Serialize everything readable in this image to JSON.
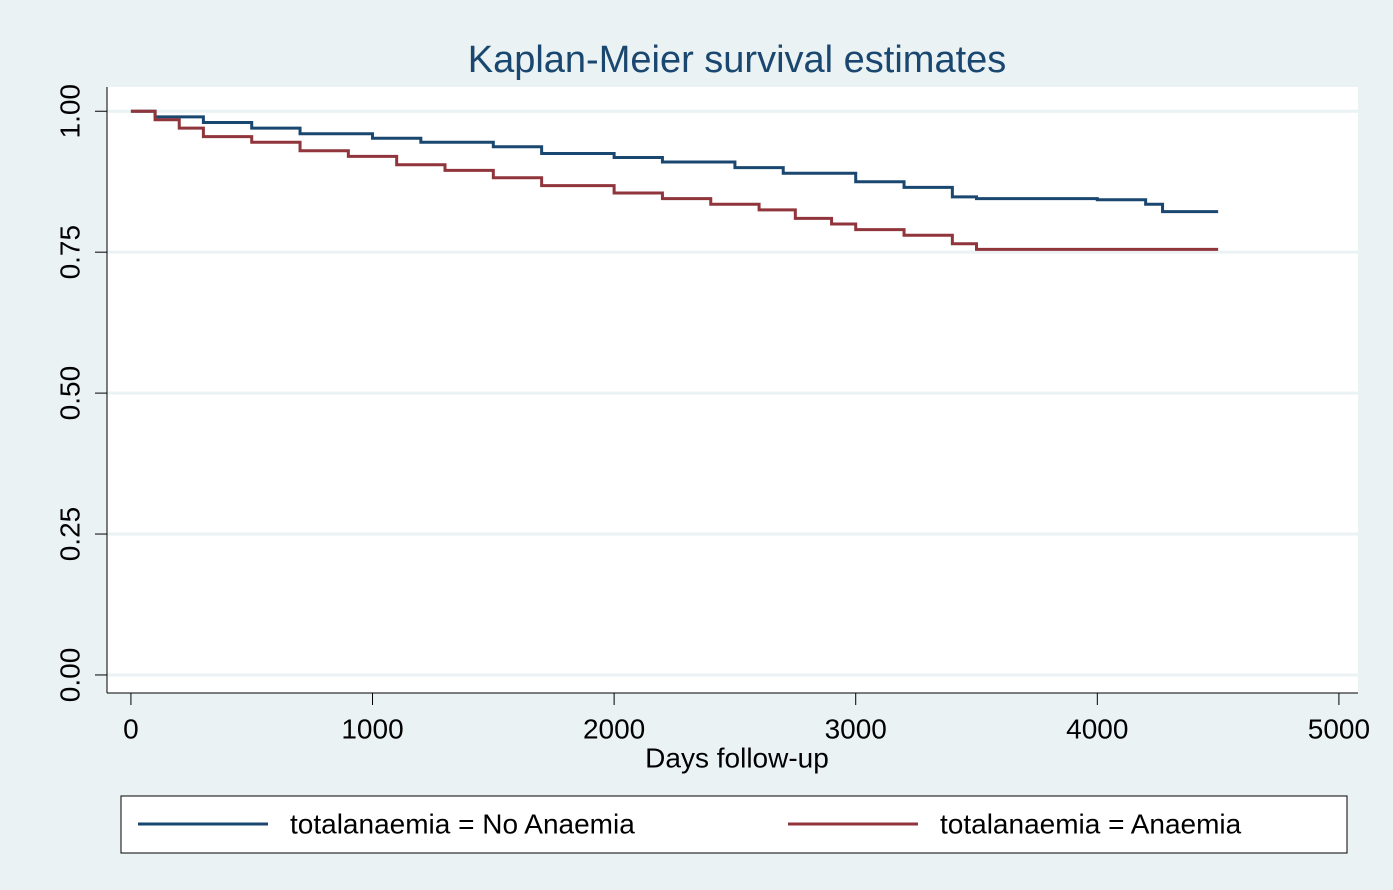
{
  "chart_data": {
    "type": "line",
    "step": "post",
    "title": "Kaplan-Meier survival estimates",
    "xlabel": "Days follow-up",
    "xlim": [
      -99,
      5079
    ],
    "ylim": [
      -0.032,
      1.043
    ],
    "xticks": [
      0,
      1000,
      2000,
      3000,
      4000,
      5000
    ],
    "yticks": [
      {
        "value": 0,
        "label": "0.00"
      },
      {
        "value": 0.25,
        "label": "0.25"
      },
      {
        "value": 0.5,
        "label": "0.50"
      },
      {
        "value": 0.75,
        "label": "0.75"
      },
      {
        "value": 1,
        "label": "1.00"
      }
    ],
    "grid": true,
    "legend": "bottom",
    "series": [
      {
        "name": "totalanaemia = No Anaemia",
        "color": "#1a476f",
        "x": [
          0,
          100,
          300,
          500,
          700,
          1000,
          1200,
          1500,
          1700,
          2000,
          2200,
          2500,
          2700,
          3000,
          3200,
          3400,
          3500,
          4000,
          4200,
          4270,
          4500
        ],
        "values": [
          1.0,
          0.99,
          0.98,
          0.97,
          0.96,
          0.952,
          0.945,
          0.937,
          0.925,
          0.918,
          0.91,
          0.9,
          0.89,
          0.875,
          0.865,
          0.848,
          0.845,
          0.843,
          0.835,
          0.822,
          0.822
        ]
      },
      {
        "name": "totalanaemia = Anaemia",
        "color": "#90353b",
        "x": [
          0,
          100,
          200,
          300,
          500,
          700,
          900,
          1100,
          1300,
          1500,
          1700,
          2000,
          2200,
          2400,
          2600,
          2750,
          2900,
          3000,
          3200,
          3400,
          3500,
          4500
        ],
        "values": [
          1.0,
          0.985,
          0.97,
          0.955,
          0.945,
          0.93,
          0.92,
          0.905,
          0.895,
          0.882,
          0.868,
          0.855,
          0.845,
          0.835,
          0.825,
          0.81,
          0.8,
          0.79,
          0.78,
          0.765,
          0.755,
          0.755
        ]
      }
    ]
  }
}
